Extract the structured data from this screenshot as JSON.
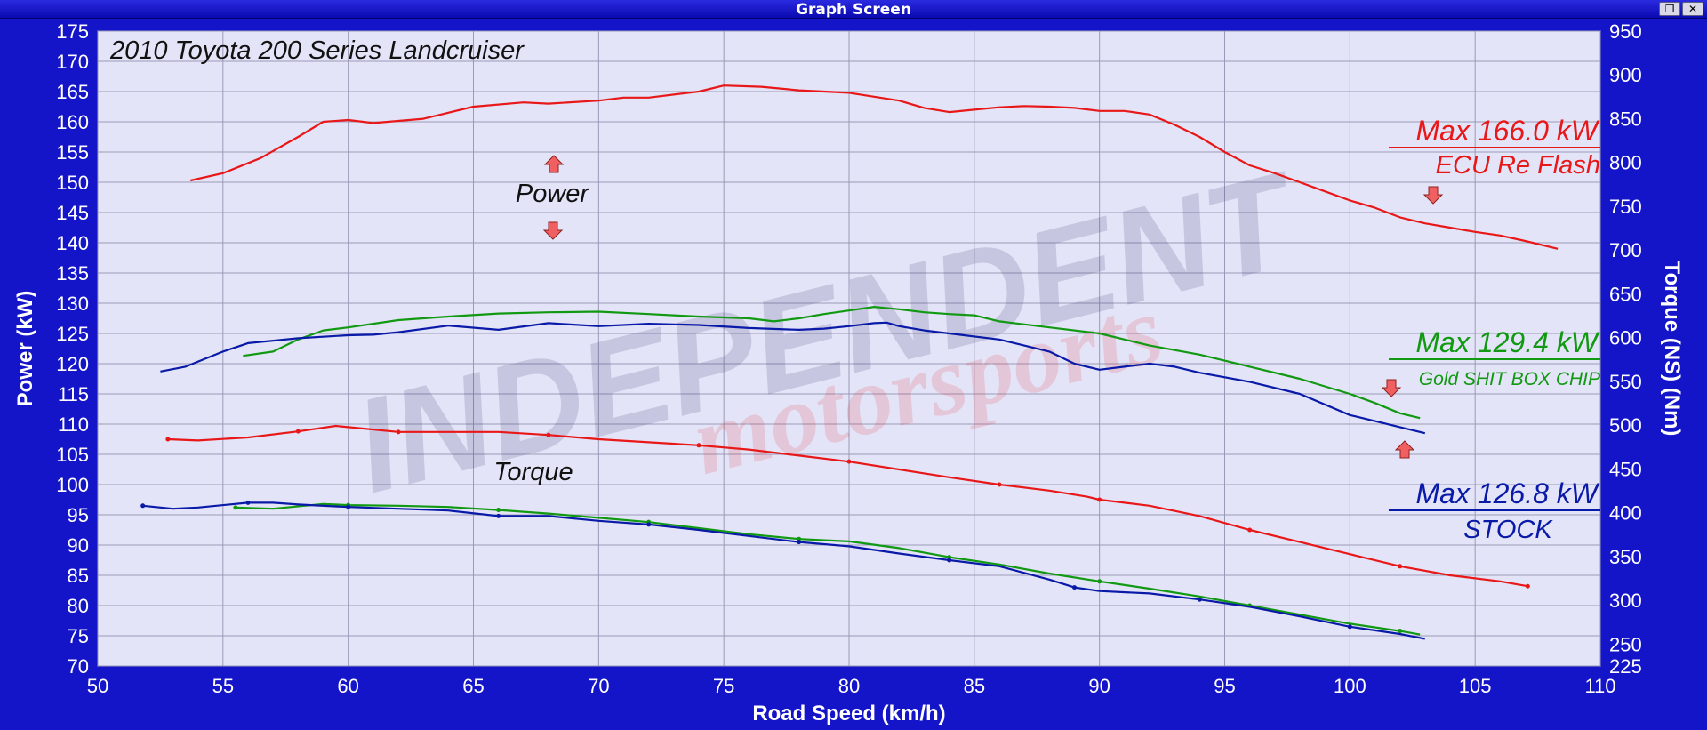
{
  "window": {
    "title": "Graph Screen",
    "restore_glyph": "❐",
    "close_glyph": "✕"
  },
  "colors": {
    "background": "#1414c8",
    "plot_bg": "#e4e4f8",
    "grid": "#9a9ab8",
    "axis_text": "#ffffff",
    "ecu": "#e81818",
    "chip": "#119911",
    "stock": "#0a1aa8",
    "arrow": "#f06060"
  },
  "chart_data": {
    "type": "line",
    "title": "2010 Toyota 200 Series Landcruiser",
    "xlabel": "Road Speed (km/h)",
    "ylabel_left": "Power (kW)",
    "ylabel_right": "Torque (NS) (Nm)",
    "xlim": [
      50,
      110
    ],
    "ylim_left": [
      70,
      175
    ],
    "ylim_right": [
      225,
      950
    ],
    "x_ticks": [
      "50",
      "55",
      "60",
      "65",
      "70",
      "75",
      "80",
      "85",
      "90",
      "95",
      "100",
      "105",
      "110"
    ],
    "y_ticks_left": [
      "70",
      "75",
      "80",
      "85",
      "90",
      "95",
      "100",
      "105",
      "110",
      "115",
      "120",
      "125",
      "130",
      "135",
      "140",
      "145",
      "150",
      "155",
      "160",
      "165",
      "170",
      "175"
    ],
    "y_ticks_right": [
      "225",
      "250",
      "300",
      "350",
      "400",
      "450",
      "500",
      "550",
      "600",
      "650",
      "700",
      "750",
      "800",
      "850",
      "900",
      "950"
    ],
    "grid": true,
    "annotations": {
      "power_label": "Power",
      "torque_label": "Torque",
      "ecu_max": "Max 166.0 kW",
      "ecu_name": "ECU Re Flash",
      "chip_max": "Max 129.4 kW",
      "chip_name": "Gold SHIT BOX CHIP",
      "stock_max": "Max 126.8 kW",
      "stock_name": "STOCK"
    },
    "series": [
      {
        "name": "ECU Re Flash",
        "quantity": "power",
        "axis": "left",
        "color": "#e81818",
        "x": [
          53.7,
          55,
          56.5,
          58,
          59,
          60,
          61,
          63,
          65,
          67,
          68,
          70,
          71,
          72,
          74,
          75,
          76.5,
          78,
          80,
          82,
          83,
          84,
          85,
          86,
          87,
          88,
          89,
          90,
          91,
          92,
          93,
          94,
          95,
          96,
          97,
          98,
          99,
          100,
          101,
          102,
          103,
          104,
          105,
          106,
          107,
          108.3
        ],
        "y": [
          150.3,
          151.5,
          154,
          157.5,
          160,
          160.3,
          159.8,
          160.5,
          162.5,
          163.2,
          163,
          163.5,
          164,
          164,
          165,
          166,
          165.8,
          165.2,
          164.8,
          163.5,
          162.3,
          161.6,
          162,
          162.4,
          162.6,
          162.5,
          162.3,
          161.8,
          161.8,
          161.2,
          159.5,
          157.5,
          155,
          152.8,
          151.5,
          150,
          148.5,
          147,
          145.8,
          144.2,
          143.2,
          142.5,
          141.8,
          141.2,
          140.3,
          139
        ]
      },
      {
        "name": "Gold SHIT BOX CHIP",
        "quantity": "power",
        "axis": "left",
        "color": "#119911",
        "x": [
          55.8,
          57,
          58,
          59,
          60,
          62,
          64,
          66,
          68,
          70,
          72,
          74,
          76,
          77,
          78,
          79,
          80,
          81,
          82,
          83,
          84,
          85,
          86,
          88,
          90,
          92,
          94,
          96,
          98,
          100,
          101,
          102,
          102.8
        ],
        "y": [
          121.3,
          122,
          124,
          125.5,
          126,
          127.2,
          127.8,
          128.3,
          128.5,
          128.6,
          128.2,
          127.8,
          127.5,
          127,
          127.5,
          128.2,
          128.8,
          129.4,
          129,
          128.5,
          128.2,
          128,
          127,
          126,
          125,
          123,
          121.5,
          119.5,
          117.5,
          115,
          113.5,
          111.8,
          111
        ]
      },
      {
        "name": "STOCK",
        "quantity": "power",
        "axis": "left",
        "color": "#0a1aa8",
        "x": [
          52.5,
          53.5,
          55,
          56,
          58,
          60,
          61,
          62,
          64,
          66,
          68,
          70,
          72,
          74,
          76,
          78,
          79,
          80,
          81,
          81.5,
          82,
          83,
          84,
          86,
          88,
          89,
          90,
          91,
          92,
          93,
          94,
          96,
          98,
          100,
          101,
          102,
          103
        ],
        "y": [
          118.7,
          119.5,
          122,
          123.4,
          124.2,
          124.7,
          124.8,
          125.2,
          126.3,
          125.6,
          126.7,
          126.2,
          126.6,
          126.4,
          125.9,
          125.6,
          125.8,
          126.2,
          126.7,
          126.8,
          126.2,
          125.5,
          125,
          124,
          122,
          120,
          119,
          119.5,
          120,
          119.5,
          118.5,
          117,
          115,
          111.5,
          110.5,
          109.5,
          108.5
        ]
      },
      {
        "name": "ECU Re Flash",
        "quantity": "torque",
        "axis": "left",
        "color": "#e81818",
        "x": [
          52.8,
          54,
          56,
          58,
          59.5,
          60,
          62,
          64,
          66,
          68,
          70,
          72,
          74,
          76,
          78,
          80,
          82,
          84,
          86,
          88,
          89.5,
          90,
          92,
          94,
          96,
          98,
          100,
          102,
          104,
          106,
          107.1
        ],
        "y": [
          107.5,
          107.3,
          107.8,
          108.8,
          109.7,
          109.5,
          108.7,
          108.7,
          108.7,
          108.2,
          107.5,
          107,
          106.5,
          105.8,
          104.8,
          103.8,
          102.5,
          101.2,
          100,
          99,
          98,
          97.5,
          96.5,
          94.8,
          92.5,
          90.5,
          88.5,
          86.5,
          85,
          84,
          83.2
        ]
      },
      {
        "name": "Gold SHIT BOX CHIP",
        "quantity": "torque",
        "axis": "left",
        "color": "#119911",
        "x": [
          55.5,
          57,
          59,
          60,
          62,
          64,
          66,
          68,
          70,
          72,
          74,
          76,
          78,
          80,
          82,
          84,
          86,
          88,
          90,
          92,
          94,
          96,
          98,
          100,
          102,
          102.8
        ],
        "y": [
          96.2,
          96,
          96.8,
          96.6,
          96.5,
          96.3,
          95.8,
          95.2,
          94.5,
          93.8,
          92.8,
          91.8,
          91,
          90.6,
          89.5,
          88,
          86.8,
          85.3,
          84,
          82.8,
          81.5,
          80,
          78.5,
          77,
          75.8,
          75.2
        ]
      },
      {
        "name": "STOCK",
        "quantity": "torque",
        "axis": "left",
        "color": "#0a1aa8",
        "x": [
          51.8,
          53,
          54,
          56,
          57,
          58,
          60,
          62,
          64,
          66,
          68,
          70,
          72,
          74,
          76,
          78,
          80,
          82,
          84,
          86,
          88,
          89,
          90,
          92,
          94,
          96,
          98,
          100,
          102,
          103
        ],
        "y": [
          96.5,
          96,
          96.2,
          97,
          97,
          96.7,
          96.3,
          96,
          95.7,
          94.8,
          94.8,
          94,
          93.4,
          92.5,
          91.5,
          90.5,
          89.8,
          88.6,
          87.5,
          86.5,
          84.3,
          83,
          82.4,
          82,
          81,
          79.8,
          78.2,
          76.5,
          75.3,
          74.5
        ]
      }
    ]
  }
}
